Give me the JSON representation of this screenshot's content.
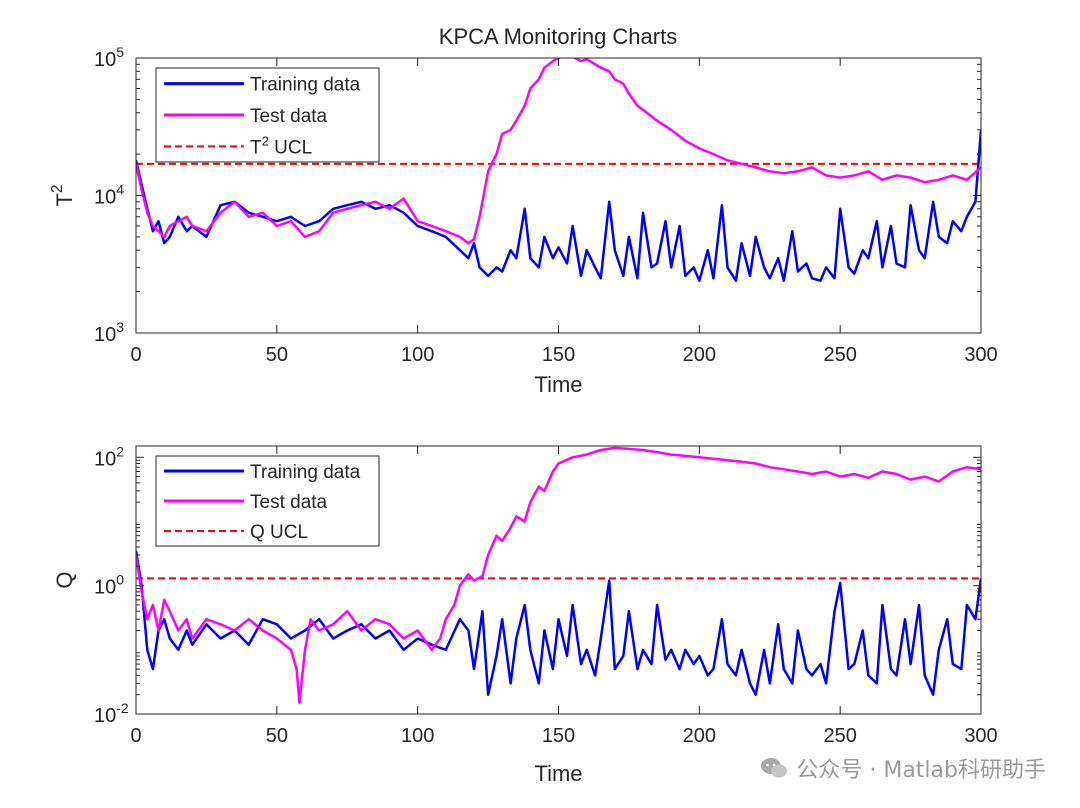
{
  "figure": {
    "title": "KPCA Monitoring Charts"
  },
  "watermark": {
    "text": "公众号 · Matlab科研助手",
    "icon": "wechat-icon"
  },
  "colors": {
    "training": "#0000ff",
    "test": "#ff00ff",
    "ucl": "#ff0000",
    "axis": "#262626"
  },
  "chart_data": [
    {
      "type": "line",
      "title": "KPCA Monitoring Charts",
      "xlabel": "Time",
      "ylabel": "T",
      "ylabel_sup": "2",
      "yscale": "log",
      "xlim": [
        0,
        300
      ],
      "ylim": [
        1000,
        100000
      ],
      "xticks": [
        0,
        50,
        100,
        150,
        200,
        250,
        300
      ],
      "xtick_labels": [
        "0",
        "50",
        "100",
        "150",
        "200",
        "250",
        "300"
      ],
      "yticks": [
        1000,
        10000,
        100000
      ],
      "ytick_labels": [
        {
          "base": "10",
          "exp": "3"
        },
        {
          "base": "10",
          "exp": "4"
        },
        {
          "base": "10",
          "exp": "5"
        }
      ],
      "legend": {
        "position": "top-left",
        "entries": [
          {
            "label": "Training data",
            "sup": "",
            "suffix": ""
          },
          {
            "label": "Test data",
            "sup": "",
            "suffix": ""
          },
          {
            "label": "T",
            "sup": "2",
            "suffix": " UCL"
          }
        ]
      },
      "ucl": 17000,
      "series": [
        {
          "name": "Training data",
          "x": [
            0,
            2,
            4,
            6,
            8,
            10,
            12,
            15,
            18,
            20,
            25,
            30,
            35,
            40,
            45,
            50,
            55,
            60,
            65,
            70,
            75,
            80,
            85,
            90,
            95,
            100,
            105,
            110,
            115,
            118,
            120,
            122,
            125,
            128,
            130,
            133,
            135,
            138,
            140,
            143,
            145,
            148,
            150,
            153,
            155,
            158,
            160,
            163,
            165,
            168,
            170,
            173,
            175,
            178,
            180,
            183,
            185,
            188,
            190,
            193,
            195,
            198,
            200,
            203,
            205,
            208,
            210,
            213,
            215,
            218,
            220,
            223,
            225,
            228,
            230,
            233,
            235,
            238,
            240,
            243,
            245,
            248,
            250,
            253,
            255,
            258,
            260,
            263,
            265,
            268,
            270,
            273,
            275,
            278,
            280,
            283,
            285,
            288,
            290,
            293,
            295,
            298,
            300
          ],
          "values": [
            18000,
            12000,
            8000,
            5500,
            6500,
            4500,
            5000,
            7000,
            5500,
            6000,
            5000,
            8500,
            9000,
            7500,
            7000,
            6500,
            7000,
            6000,
            6500,
            8000,
            8500,
            9000,
            8000,
            8500,
            7500,
            6000,
            5500,
            5000,
            4000,
            3500,
            4500,
            3000,
            2600,
            3000,
            2800,
            4000,
            3500,
            8000,
            3500,
            3000,
            5000,
            3500,
            4200,
            3200,
            6000,
            2600,
            4000,
            3000,
            2500,
            9000,
            4000,
            2600,
            5000,
            2500,
            7500,
            3000,
            3200,
            6500,
            3000,
            6000,
            2600,
            3000,
            2400,
            4000,
            2500,
            8500,
            3000,
            2400,
            4500,
            2600,
            5000,
            3000,
            2500,
            3500,
            2400,
            5500,
            2800,
            3200,
            2500,
            2400,
            3000,
            2500,
            8000,
            3000,
            2700,
            4000,
            3500,
            6500,
            3000,
            6000,
            3200,
            3000,
            8500,
            4000,
            3500,
            9000,
            5000,
            4500,
            6500,
            5500,
            7000,
            9000,
            30000
          ]
        },
        {
          "name": "Test data",
          "x": [
            0,
            2,
            4,
            6,
            8,
            10,
            12,
            15,
            18,
            20,
            25,
            30,
            35,
            40,
            45,
            50,
            55,
            60,
            65,
            70,
            75,
            80,
            85,
            90,
            95,
            100,
            105,
            110,
            115,
            118,
            120,
            122,
            125,
            128,
            130,
            133,
            135,
            138,
            140,
            143,
            145,
            148,
            150,
            153,
            155,
            158,
            160,
            163,
            165,
            168,
            170,
            173,
            175,
            178,
            180,
            185,
            190,
            195,
            200,
            205,
            210,
            215,
            220,
            225,
            230,
            235,
            240,
            245,
            250,
            255,
            260,
            265,
            270,
            275,
            280,
            285,
            290,
            295,
            300
          ],
          "values": [
            17000,
            11000,
            7500,
            6000,
            5500,
            5000,
            6000,
            6500,
            7000,
            6000,
            5500,
            7500,
            9000,
            7000,
            7500,
            6000,
            6500,
            5000,
            5500,
            7500,
            8000,
            8500,
            9000,
            8000,
            9500,
            6500,
            6000,
            5500,
            5000,
            4500,
            4800,
            7000,
            15000,
            20000,
            28000,
            30000,
            35000,
            45000,
            60000,
            70000,
            85000,
            95000,
            100000,
            105000,
            102000,
            95000,
            98000,
            90000,
            85000,
            80000,
            70000,
            65000,
            55000,
            45000,
            42000,
            35000,
            30000,
            25000,
            22000,
            20000,
            18000,
            17000,
            16000,
            15000,
            14500,
            15000,
            16000,
            14000,
            13500,
            14000,
            15000,
            13000,
            14000,
            13500,
            12500,
            13000,
            14000,
            13000,
            16000
          ]
        }
      ]
    },
    {
      "type": "line",
      "title": "",
      "xlabel": "Time",
      "ylabel": "Q",
      "ylabel_sup": "",
      "yscale": "log",
      "xlim": [
        0,
        300
      ],
      "ylim": [
        0.01,
        150
      ],
      "xticks": [
        0,
        50,
        100,
        150,
        200,
        250,
        300
      ],
      "xtick_labels": [
        "0",
        "50",
        "100",
        "150",
        "200",
        "250",
        "300"
      ],
      "yticks": [
        0.01,
        1,
        100
      ],
      "ytick_labels": [
        {
          "base": "10",
          "exp": "-2"
        },
        {
          "base": "10",
          "exp": "0"
        },
        {
          "base": "10",
          "exp": "2"
        }
      ],
      "legend": {
        "position": "top-left",
        "entries": [
          {
            "label": "Training data",
            "sup": "",
            "suffix": ""
          },
          {
            "label": "Test data",
            "sup": "",
            "suffix": ""
          },
          {
            "label": "Q UCL",
            "sup": "",
            "suffix": ""
          }
        ]
      },
      "ucl": 1.3,
      "series": [
        {
          "name": "Training data",
          "x": [
            0,
            2,
            4,
            6,
            8,
            10,
            12,
            15,
            18,
            20,
            25,
            30,
            35,
            40,
            45,
            50,
            55,
            60,
            65,
            70,
            75,
            80,
            85,
            90,
            95,
            100,
            105,
            110,
            115,
            118,
            120,
            123,
            125,
            128,
            130,
            133,
            135,
            138,
            140,
            143,
            145,
            148,
            150,
            153,
            155,
            158,
            160,
            163,
            165,
            168,
            170,
            173,
            175,
            178,
            180,
            183,
            185,
            188,
            190,
            193,
            195,
            198,
            200,
            203,
            205,
            208,
            210,
            213,
            215,
            218,
            220,
            223,
            225,
            228,
            230,
            233,
            235,
            238,
            240,
            243,
            245,
            248,
            250,
            253,
            255,
            258,
            260,
            263,
            265,
            268,
            270,
            273,
            275,
            278,
            280,
            283,
            285,
            288,
            290,
            293,
            295,
            298,
            300
          ],
          "values": [
            3.5,
            1.0,
            0.1,
            0.05,
            0.2,
            0.3,
            0.15,
            0.1,
            0.2,
            0.12,
            0.25,
            0.15,
            0.2,
            0.12,
            0.3,
            0.25,
            0.15,
            0.2,
            0.3,
            0.15,
            0.2,
            0.25,
            0.15,
            0.2,
            0.1,
            0.15,
            0.12,
            0.1,
            0.3,
            0.2,
            0.05,
            0.4,
            0.02,
            0.08,
            0.3,
            0.03,
            0.15,
            0.5,
            0.1,
            0.03,
            0.2,
            0.05,
            0.3,
            0.08,
            0.5,
            0.06,
            0.1,
            0.04,
            0.15,
            1.2,
            0.05,
            0.08,
            0.4,
            0.05,
            0.1,
            0.06,
            0.5,
            0.07,
            0.1,
            0.05,
            0.1,
            0.06,
            0.08,
            0.04,
            0.05,
            0.3,
            0.06,
            0.04,
            0.1,
            0.03,
            0.02,
            0.1,
            0.03,
            0.25,
            0.05,
            0.03,
            0.2,
            0.05,
            0.04,
            0.06,
            0.03,
            0.4,
            1.1,
            0.05,
            0.06,
            0.2,
            0.04,
            0.03,
            0.5,
            0.05,
            0.04,
            0.3,
            0.06,
            0.5,
            0.04,
            0.02,
            0.1,
            0.3,
            0.06,
            0.05,
            0.5,
            0.3,
            1.3
          ]
        },
        {
          "name": "Test data",
          "x": [
            0,
            2,
            4,
            6,
            8,
            10,
            12,
            15,
            18,
            20,
            25,
            30,
            35,
            40,
            45,
            50,
            55,
            57,
            58,
            60,
            62,
            65,
            70,
            75,
            80,
            85,
            90,
            95,
            100,
            105,
            108,
            110,
            113,
            115,
            118,
            120,
            123,
            125,
            128,
            130,
            133,
            135,
            138,
            140,
            143,
            145,
            148,
            150,
            155,
            160,
            165,
            170,
            175,
            180,
            185,
            190,
            195,
            200,
            205,
            210,
            215,
            220,
            225,
            230,
            235,
            240,
            245,
            250,
            255,
            260,
            265,
            270,
            275,
            280,
            285,
            290,
            295,
            300
          ],
          "values": [
            3.0,
            0.8,
            0.3,
            0.5,
            0.2,
            0.6,
            0.4,
            0.2,
            0.3,
            0.15,
            0.3,
            0.25,
            0.2,
            0.3,
            0.2,
            0.15,
            0.1,
            0.05,
            0.015,
            0.1,
            0.3,
            0.2,
            0.25,
            0.4,
            0.2,
            0.3,
            0.25,
            0.15,
            0.2,
            0.1,
            0.15,
            0.3,
            0.5,
            1.0,
            1.5,
            1.2,
            1.4,
            3.0,
            6.0,
            5.0,
            8.0,
            12.0,
            10.0,
            20.0,
            35.0,
            30.0,
            60.0,
            80.0,
            100.0,
            110.0,
            130.0,
            140.0,
            135.0,
            130.0,
            120.0,
            110.0,
            105.0,
            100.0,
            95.0,
            90.0,
            85.0,
            80.0,
            70.0,
            65.0,
            60.0,
            55.0,
            60.0,
            50.0,
            55.0,
            48.0,
            60.0,
            55.0,
            45.0,
            50.0,
            42.0,
            60.0,
            70.0,
            65.0
          ]
        }
      ]
    }
  ]
}
